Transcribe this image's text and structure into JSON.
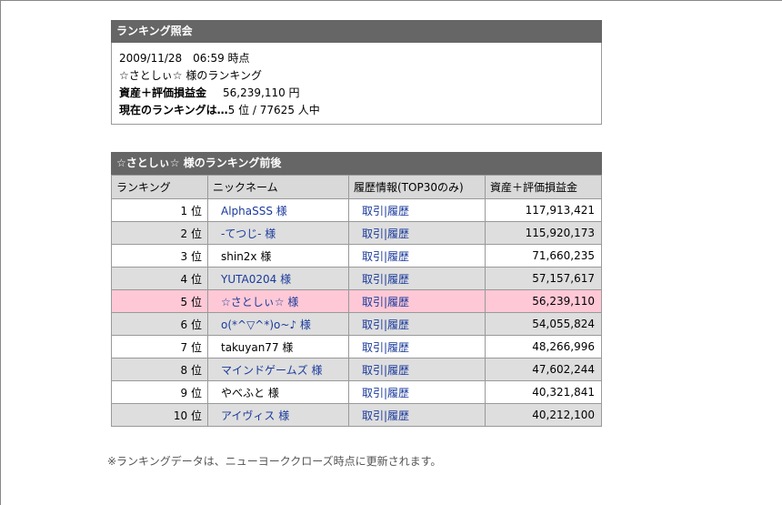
{
  "info": {
    "header": "ランキング照会",
    "datetime": "2009/11/28　06:59 時点",
    "user_line": "☆さとしぃ☆ 様のランキング",
    "asset_label": "資産＋評価損益金",
    "asset_value": "56,239,110 円",
    "current_label": "現在のランキングは…",
    "current_value": "5 位 / 77625 人中"
  },
  "ranking": {
    "header": "☆さとしぃ☆ 様のランキング前後",
    "columns": [
      "ランキング",
      "ニックネーム",
      "履歴情報(TOP30のみ)",
      "資産＋評価損益金"
    ],
    "rows": [
      {
        "rank": "1 位",
        "nick": "AlphaSSS 様",
        "hist": "取引|履歴",
        "amount": "117,913,421",
        "style": "odd",
        "link": true
      },
      {
        "rank": "2 位",
        "nick": "-てつじ- 様",
        "hist": "取引|履歴",
        "amount": "115,920,173",
        "style": "even",
        "link": true
      },
      {
        "rank": "3 位",
        "nick": "shin2x 様",
        "hist": "取引|履歴",
        "amount": "71,660,235",
        "style": "odd",
        "link": false
      },
      {
        "rank": "4 位",
        "nick": "YUTA0204 様",
        "hist": "取引|履歴",
        "amount": "57,157,617",
        "style": "even",
        "link": true
      },
      {
        "rank": "5 位",
        "nick": "☆さとしぃ☆ 様",
        "hist": "取引|履歴",
        "amount": "56,239,110",
        "style": "self",
        "link": true
      },
      {
        "rank": "6 位",
        "nick": "o(*^▽^*)o~♪ 様",
        "hist": "取引|履歴",
        "amount": "54,055,824",
        "style": "even",
        "link": true
      },
      {
        "rank": "7 位",
        "nick": "takuyan77 様",
        "hist": "取引|履歴",
        "amount": "48,266,996",
        "style": "odd",
        "link": false
      },
      {
        "rank": "8 位",
        "nick": "マインドゲームズ 様",
        "hist": "取引|履歴",
        "amount": "47,602,244",
        "style": "even",
        "link": true
      },
      {
        "rank": "9 位",
        "nick": "やべふと 様",
        "hist": "取引|履歴",
        "amount": "40,321,841",
        "style": "odd",
        "link": false
      },
      {
        "rank": "10 位",
        "nick": "アイヴィス 様",
        "hist": "取引|履歴",
        "amount": "40,212,100",
        "style": "even",
        "link": true
      }
    ]
  },
  "footnote": "※ランキングデータは、ニューヨーククローズ時点に更新されます。",
  "colors": {
    "header_bg": "#666666",
    "link": "#1a3a9c",
    "self_row": "#ffc8d6",
    "alt_row": "#dedede"
  }
}
